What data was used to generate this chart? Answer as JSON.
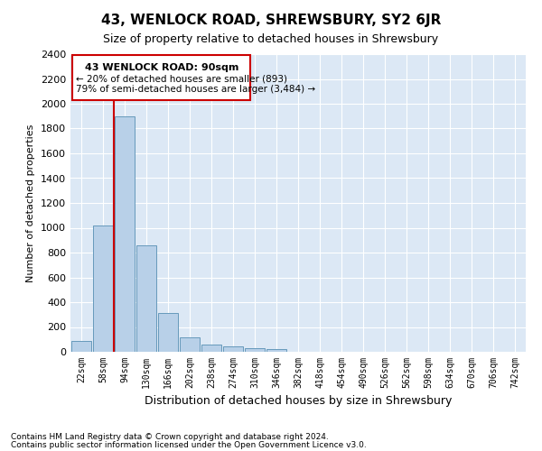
{
  "title": "43, WENLOCK ROAD, SHREWSBURY, SY2 6JR",
  "subtitle": "Size of property relative to detached houses in Shrewsbury",
  "xlabel": "Distribution of detached houses by size in Shrewsbury",
  "ylabel": "Number of detached properties",
  "footnote1": "Contains HM Land Registry data © Crown copyright and database right 2024.",
  "footnote2": "Contains public sector information licensed under the Open Government Licence v3.0.",
  "annotation_title": "43 WENLOCK ROAD: 90sqm",
  "annotation_line1": "← 20% of detached houses are smaller (893)",
  "annotation_line2": "79% of semi-detached houses are larger (3,484) →",
  "bar_color": "#b8d0e8",
  "bar_edge_color": "#6699bb",
  "redline_color": "#cc0000",
  "bg_color": "#dce8f5",
  "categories": [
    "22sqm",
    "58sqm",
    "94sqm",
    "130sqm",
    "166sqm",
    "202sqm",
    "238sqm",
    "274sqm",
    "310sqm",
    "346sqm",
    "382sqm",
    "418sqm",
    "454sqm",
    "490sqm",
    "526sqm",
    "562sqm",
    "598sqm",
    "634sqm",
    "670sqm",
    "706sqm",
    "742sqm"
  ],
  "values": [
    90,
    1020,
    1900,
    860,
    315,
    120,
    55,
    45,
    30,
    20,
    0,
    0,
    0,
    0,
    0,
    0,
    0,
    0,
    0,
    0,
    0
  ],
  "ylim": [
    0,
    2400
  ],
  "yticks": [
    0,
    200,
    400,
    600,
    800,
    1000,
    1200,
    1400,
    1600,
    1800,
    2000,
    2200,
    2400
  ],
  "title_fontsize": 11,
  "subtitle_fontsize": 9,
  "ylabel_fontsize": 8,
  "xlabel_fontsize": 9,
  "tick_fontsize": 8,
  "xtick_fontsize": 7,
  "footnote_fontsize": 6.5,
  "annotation_title_fontsize": 8,
  "annotation_text_fontsize": 7.5
}
